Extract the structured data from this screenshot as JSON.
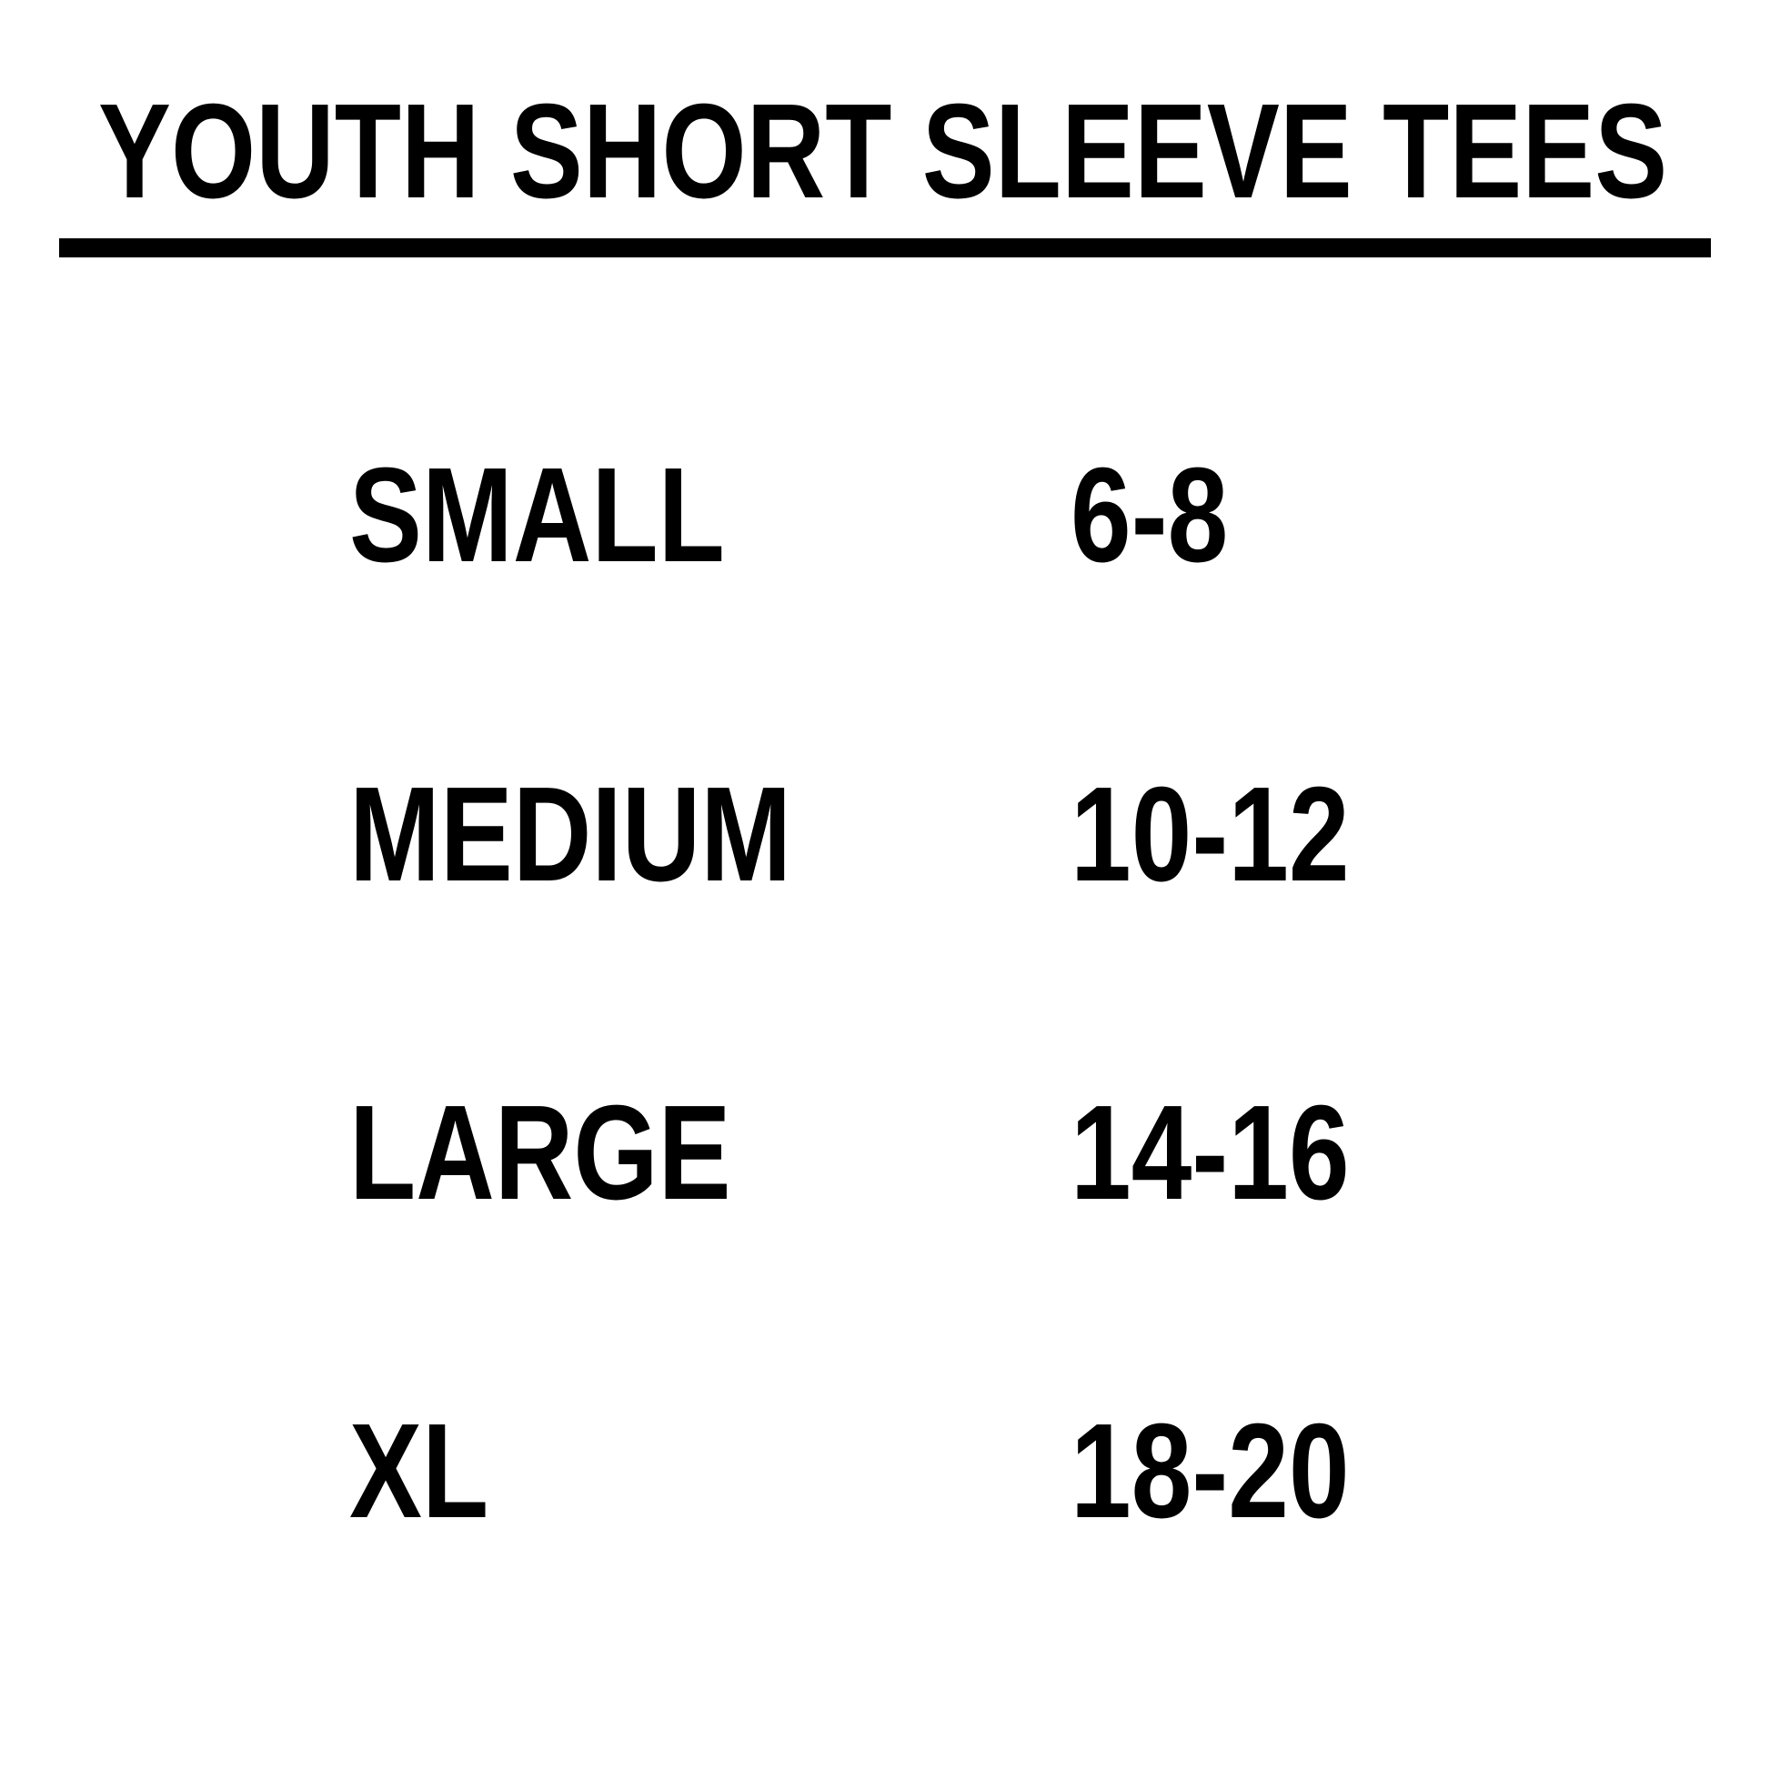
{
  "title": "YOUTH SHORT SLEEVE TEES",
  "rows": [
    {
      "size": "SMALL",
      "range": "6-8"
    },
    {
      "size": "MEDIUM",
      "range": "10-12"
    },
    {
      "size": "LARGE",
      "range": "14-16"
    },
    {
      "size": "XL",
      "range": "18-20"
    }
  ],
  "colors": {
    "text": "#000000",
    "background": "#ffffff"
  }
}
